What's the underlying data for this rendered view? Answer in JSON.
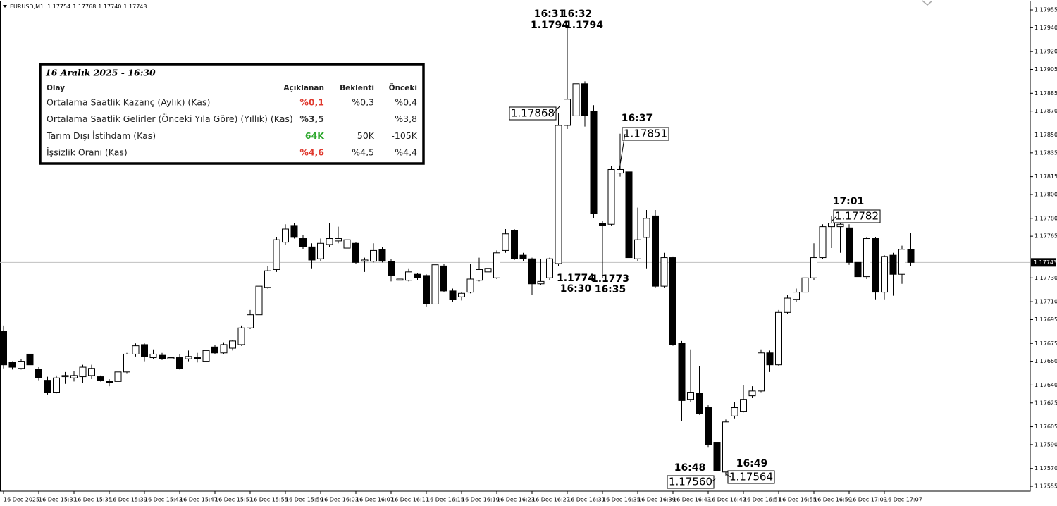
{
  "chart_data": {
    "type": "candlestick",
    "symbol": "EURUSD,M1",
    "header_values": [
      "1.17754",
      "1.17768",
      "1.17740",
      "1.17743"
    ],
    "up_color": "#ffffff",
    "down_color": "#000000",
    "wick_color": "#000000",
    "price_line_color": "#c0c0c0",
    "x": [
      "15:27",
      "15:28",
      "15:29",
      "15:30",
      "15:31",
      "15:32",
      "15:33",
      "15:34",
      "15:35",
      "15:36",
      "15:37",
      "15:38",
      "15:39",
      "15:40",
      "15:41",
      "15:42",
      "15:43",
      "15:44",
      "15:45",
      "15:46",
      "15:47",
      "15:48",
      "15:49",
      "15:50",
      "15:51",
      "15:52",
      "15:53",
      "15:54",
      "15:55",
      "15:56",
      "15:57",
      "15:58",
      "15:59",
      "16:00",
      "16:01",
      "16:02",
      "16:03",
      "16:04",
      "16:05",
      "16:06",
      "16:07",
      "16:08",
      "16:09",
      "16:10",
      "16:11",
      "16:12",
      "16:13",
      "16:14",
      "16:15",
      "16:16",
      "16:17",
      "16:18",
      "16:19",
      "16:20",
      "16:21",
      "16:22",
      "16:23",
      "16:24",
      "16:25",
      "16:26",
      "16:27",
      "16:28",
      "16:29",
      "16:30",
      "16:31",
      "16:32",
      "16:33",
      "16:34",
      "16:35",
      "16:36",
      "16:37",
      "16:38",
      "16:39",
      "16:40",
      "16:41",
      "16:42",
      "16:43",
      "16:44",
      "16:45",
      "16:46",
      "16:47",
      "16:48",
      "16:49",
      "16:50",
      "16:51",
      "16:52",
      "16:53",
      "16:54",
      "16:55",
      "16:56",
      "16:57",
      "16:58",
      "16:59",
      "17:00",
      "17:01",
      "17:02",
      "17:03",
      "17:04",
      "17:05",
      "17:06",
      "17:07",
      "17:08",
      "17:09",
      "17:10"
    ],
    "open": [
      1.17685,
      1.17659,
      1.17654,
      1.17666,
      1.17653,
      1.17644,
      1.17634,
      1.17647,
      1.17646,
      1.17647,
      1.17648,
      1.17647,
      1.17643,
      1.17643,
      1.17651,
      1.17666,
      1.17674,
      1.17663,
      1.17665,
      1.17662,
      1.17663,
      1.17662,
      1.17663,
      1.1766,
      1.17672,
      1.17667,
      1.17671,
      1.17674,
      1.17688,
      1.17699,
      1.17722,
      1.17737,
      1.1776,
      1.17774,
      1.17763,
      1.17756,
      1.17746,
      1.17758,
      1.17761,
      1.17755,
      1.17759,
      1.17744,
      1.17744,
      1.17754,
      1.17744,
      1.17728,
      1.17728,
      1.17733,
      1.17732,
      1.17708,
      1.1774,
      1.17719,
      1.17714,
      1.17718,
      1.17728,
      1.17735,
      1.1773,
      1.17753,
      1.1777,
      1.17749,
      1.17746,
      1.17725,
      1.1773,
      1.17742,
      1.17858,
      1.17866,
      1.17893,
      1.1787,
      1.17776,
      1.17775,
      1.17818,
      1.17819,
      1.17746,
      1.17764,
      1.17782,
      1.17723,
      1.17747,
      1.17675,
      1.17628,
      1.17633,
      1.17621,
      1.17592,
      1.17567,
      1.17614,
      1.17618,
      1.17631,
      1.17635,
      1.17667,
      1.17657,
      1.17701,
      1.17712,
      1.17718,
      1.1773,
      1.17747,
      1.17773,
      1.17773,
      1.17772,
      1.17743,
      1.17731,
      1.17763,
      1.17718,
      1.17749,
      1.17733,
      1.17754
    ],
    "high": [
      1.1769,
      1.1766,
      1.17662,
      1.17669,
      1.17655,
      1.17647,
      1.17648,
      1.17651,
      1.17652,
      1.17657,
      1.17657,
      1.17648,
      1.17645,
      1.17654,
      1.17667,
      1.17675,
      1.17675,
      1.1767,
      1.17667,
      1.1767,
      1.17666,
      1.17669,
      1.17667,
      1.1767,
      1.17674,
      1.17676,
      1.17678,
      1.1769,
      1.17703,
      1.17725,
      1.1774,
      1.17764,
      1.17775,
      1.17776,
      1.17766,
      1.17759,
      1.17763,
      1.17776,
      1.17773,
      1.17765,
      1.1776,
      1.17747,
      1.17759,
      1.17756,
      1.17746,
      1.17738,
      1.17738,
      1.17734,
      1.17733,
      1.17742,
      1.17742,
      1.17721,
      1.17718,
      1.17742,
      1.17747,
      1.1774,
      1.17753,
      1.17771,
      1.17771,
      1.17751,
      1.17747,
      1.17746,
      1.17747,
      1.17868,
      1.17941,
      1.1794,
      1.17895,
      1.17875,
      1.17778,
      1.17824,
      1.17851,
      1.17828,
      1.17789,
      1.17787,
      1.17787,
      1.17751,
      1.17748,
      1.17677,
      1.1767,
      1.17656,
      1.17623,
      1.17594,
      1.17611,
      1.17626,
      1.1764,
      1.17639,
      1.1767,
      1.17669,
      1.17703,
      1.17716,
      1.17721,
      1.17733,
      1.17759,
      1.17775,
      1.17782,
      1.17778,
      1.17775,
      1.17744,
      1.17764,
      1.17764,
      1.17749,
      1.17751,
      1.17757,
      1.17768
    ],
    "low": [
      1.17654,
      1.17653,
      1.17653,
      1.17654,
      1.17644,
      1.17632,
      1.17633,
      1.17641,
      1.17643,
      1.17642,
      1.17645,
      1.17643,
      1.17639,
      1.1764,
      1.1765,
      1.17664,
      1.1766,
      1.17662,
      1.17661,
      1.1766,
      1.17653,
      1.1766,
      1.17659,
      1.17658,
      1.17666,
      1.17666,
      1.17669,
      1.17673,
      1.17687,
      1.17698,
      1.17721,
      1.17735,
      1.17758,
      1.17763,
      1.17754,
      1.17738,
      1.17744,
      1.17756,
      1.17759,
      1.17753,
      1.17742,
      1.17735,
      1.17743,
      1.17743,
      1.17727,
      1.17727,
      1.17727,
      1.17728,
      1.17706,
      1.17702,
      1.17718,
      1.1771,
      1.17711,
      1.17717,
      1.17727,
      1.17728,
      1.17729,
      1.17751,
      1.17745,
      1.17744,
      1.17716,
      1.17724,
      1.17728,
      1.1774,
      1.17855,
      1.17862,
      1.17857,
      1.1778,
      1.1773,
      1.17774,
      1.17815,
      1.17745,
      1.17744,
      1.17738,
      1.17722,
      1.17722,
      1.17673,
      1.1761,
      1.17626,
      1.17615,
      1.17588,
      1.1756,
      1.17564,
      1.17612,
      1.17617,
      1.17629,
      1.17634,
      1.17651,
      1.17656,
      1.177,
      1.1771,
      1.17716,
      1.17728,
      1.17746,
      1.17755,
      1.17751,
      1.17741,
      1.17721,
      1.17729,
      1.17712,
      1.17712,
      1.17715,
      1.17725,
      1.1774
    ],
    "close": [
      1.17657,
      1.17655,
      1.1766,
      1.17657,
      1.17646,
      1.17634,
      1.17646,
      1.17648,
      1.17648,
      1.17655,
      1.17654,
      1.17644,
      1.17642,
      1.17651,
      1.17666,
      1.17673,
      1.17664,
      1.17666,
      1.17662,
      1.17663,
      1.17654,
      1.17664,
      1.17662,
      1.17669,
      1.17667,
      1.17674,
      1.17677,
      1.17688,
      1.17699,
      1.17723,
      1.17736,
      1.17762,
      1.17771,
      1.17764,
      1.17756,
      1.17745,
      1.17759,
      1.17763,
      1.17763,
      1.17762,
      1.17743,
      1.17745,
      1.17753,
      1.17744,
      1.17732,
      1.17729,
      1.17735,
      1.1773,
      1.17708,
      1.17741,
      1.17719,
      1.17712,
      1.17717,
      1.17729,
      1.17737,
      1.17738,
      1.17751,
      1.17767,
      1.17746,
      1.17746,
      1.17725,
      1.17727,
      1.17746,
      1.17858,
      1.1788,
      1.17893,
      1.17866,
      1.17784,
      1.17774,
      1.17821,
      1.17821,
      1.17747,
      1.17762,
      1.1778,
      1.17723,
      1.17747,
      1.17674,
      1.17627,
      1.17634,
      1.17616,
      1.1759,
      1.17568,
      1.17609,
      1.17621,
      1.17628,
      1.17635,
      1.17667,
      1.17657,
      1.17701,
      1.17713,
      1.17718,
      1.1773,
      1.17747,
      1.17773,
      1.17776,
      1.17775,
      1.17743,
      1.17731,
      1.17763,
      1.17718,
      1.17748,
      1.17733,
      1.17754,
      1.17743
    ],
    "ylim": [
      1.175509,
      1.179627
    ],
    "yticks": [
      1.17955,
      {
        "value": 1.1794,
        "label": "1.17940"
      },
      {
        "value": 1.1792,
        "label": "1.17920"
      },
      1.17905,
      1.17885,
      {
        "value": 1.1787,
        "label": "1.17870"
      },
      {
        "value": 1.1785,
        "label": "1.17850"
      },
      1.17835,
      1.17815,
      {
        "value": 1.178,
        "label": "1.17800"
      },
      {
        "value": 1.1778,
        "label": "1.17780"
      },
      1.17765,
      {
        "value": 1.1773,
        "label": "1.17730"
      },
      {
        "value": 1.1771,
        "label": "1.17710"
      },
      1.17695,
      1.17675,
      {
        "value": 1.1766,
        "label": "1.17660"
      },
      {
        "value": 1.1764,
        "label": "1.17640"
      },
      1.17625,
      1.17605,
      {
        "value": 1.1759,
        "label": "1.17590"
      },
      {
        "value": 1.1757,
        "label": "1.17570"
      },
      1.17555
    ],
    "xticks": [
      {
        "value": "15:27",
        "label": "16 Dec 2025"
      },
      {
        "value": "15:31",
        "label": "16 Dec 15:31"
      },
      {
        "value": "15:35",
        "label": "16 Dec 15:35"
      },
      {
        "value": "15:39",
        "label": "16 Dec 15:39"
      },
      {
        "value": "15:43",
        "label": "16 Dec 15:43"
      },
      {
        "value": "15:47",
        "label": "16 Dec 15:47"
      },
      {
        "value": "15:51",
        "label": "16 Dec 15:51"
      },
      {
        "value": "15:55",
        "label": "16 Dec 15:55"
      },
      {
        "value": "15:59",
        "label": "16 Dec 15:59"
      },
      {
        "value": "16:03",
        "label": "16 Dec 16:03"
      },
      {
        "value": "16:07",
        "label": "16 Dec 16:07"
      },
      {
        "value": "16:11",
        "label": "16 Dec 16:11"
      },
      {
        "value": "16:15",
        "label": "16 Dec 16:15"
      },
      {
        "value": "16:19",
        "label": "16 Dec 16:19"
      },
      {
        "value": "16:23",
        "label": "16 Dec 16:23"
      },
      {
        "value": "16:27",
        "label": "16 Dec 16:27"
      },
      {
        "value": "16:31",
        "label": "16 Dec 16:31"
      },
      {
        "value": "16:35",
        "label": "16 Dec 16:35"
      },
      {
        "value": "16:39",
        "label": "16 Dec 16:39"
      },
      {
        "value": "16:43",
        "label": "16 Dec 16:43"
      },
      {
        "value": "16:47",
        "label": "16 Dec 16:47"
      },
      {
        "value": "16:51",
        "label": "16 Dec 16:51"
      },
      {
        "value": "16:55",
        "label": "16 Dec 16:55"
      },
      {
        "value": "16:59",
        "label": "16 Dec 16:59"
      },
      {
        "value": "17:03",
        "label": "16 Dec 17:03"
      },
      {
        "value": "17:07",
        "label": "16 Dec 17:07"
      }
    ],
    "annotations": [
      {
        "time": "16:31",
        "price": "1.1794"
      },
      {
        "time": "16:32",
        "price": "1.1794"
      },
      {
        "price": "1.17868"
      },
      {
        "time": "16:37",
        "price": "1.17851"
      },
      {
        "time": "16:30",
        "price": "1.1774"
      },
      {
        "time": "16:35",
        "price": "1.1773"
      },
      {
        "time": "16:48",
        "price": "1.17560"
      },
      {
        "time": "16:49",
        "price": "1.17564"
      },
      {
        "time": "17:01",
        "price": "1.17782"
      }
    ]
  },
  "calendar": {
    "title": "16 Aralık 2025 -  16:30",
    "columns": [
      "Olay",
      "Açıklanan",
      "Beklenti",
      "Önceki"
    ],
    "rows": [
      {
        "event": "Ortalama Saatlik Kazanç (Aylık) (Kas)",
        "actual": "%0,1",
        "forecast": "%0,3",
        "previous": "%0,4",
        "actual_color": "#e03a2f"
      },
      {
        "event": "Ortalama Saatlik Gelirler (Önceki Yıla Göre) (Yıllık) (Kas)",
        "actual": "%3,5",
        "forecast": null,
        "previous": "%3,8",
        "actual_color": "#333333"
      },
      {
        "event": "Tarım Dışı İstihdam  (Kas)",
        "actual": "64K",
        "forecast": "50K",
        "previous": "-105K",
        "actual_color": "#2ea82e"
      },
      {
        "event": "İşsizlik Oranı  (Kas)",
        "actual": "%4,6",
        "forecast": "%4,5",
        "previous": "%4,4",
        "actual_color": "#e03a2f"
      }
    ]
  }
}
